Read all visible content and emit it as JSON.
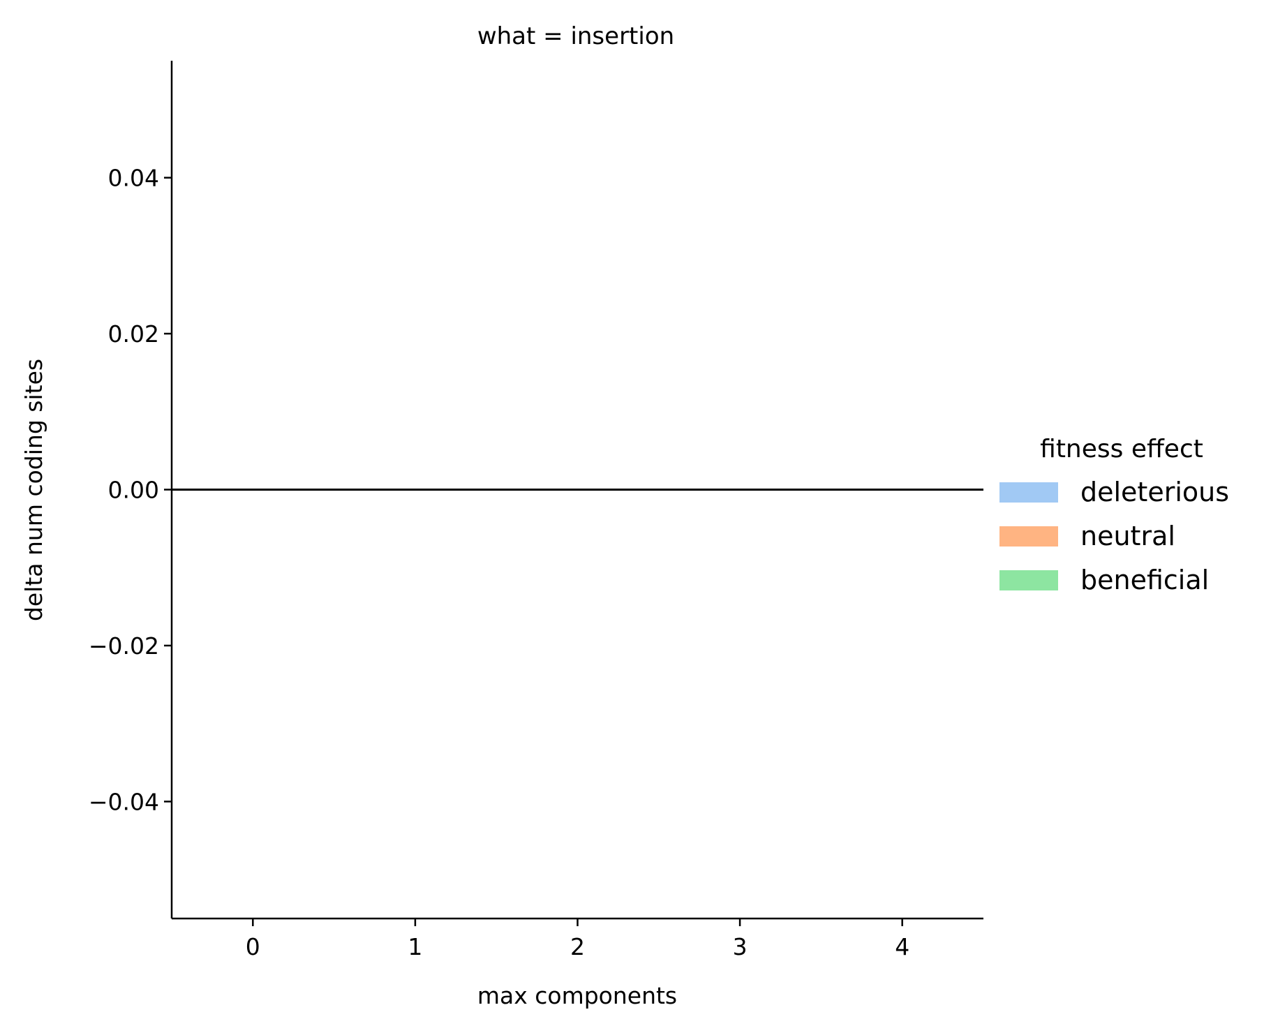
{
  "chart_data": {
    "type": "bar",
    "title": "what = insertion",
    "xlabel": "max components",
    "ylabel": "delta num coding sites",
    "categories": [
      "0",
      "1",
      "2",
      "3",
      "4"
    ],
    "x_tick_labels": [
      "0",
      "1",
      "2",
      "3",
      "4"
    ],
    "xlim": [
      -0.5,
      4.5
    ],
    "ylim": [
      -0.055,
      0.055
    ],
    "y_ticks": [
      0.04,
      0.02,
      0.0,
      -0.02,
      -0.04
    ],
    "y_tick_labels": [
      "0.04",
      "0.02",
      "0.00",
      "−0.02",
      "−0.04"
    ],
    "reference_line_y": 0.0,
    "grid": false,
    "legend_placement": "right",
    "legend": {
      "title": "fitness effect",
      "entries": [
        "deleterious",
        "neutral",
        "beneficial"
      ]
    },
    "series": [
      {
        "name": "deleterious",
        "color": "#a1c9f4",
        "values": [
          0,
          0,
          0,
          0,
          0
        ]
      },
      {
        "name": "neutral",
        "color": "#ffb482",
        "values": [
          0,
          0,
          0,
          0,
          0
        ]
      },
      {
        "name": "beneficial",
        "color": "#8de5a1",
        "values": [
          0,
          0,
          0,
          0,
          0
        ]
      }
    ]
  }
}
